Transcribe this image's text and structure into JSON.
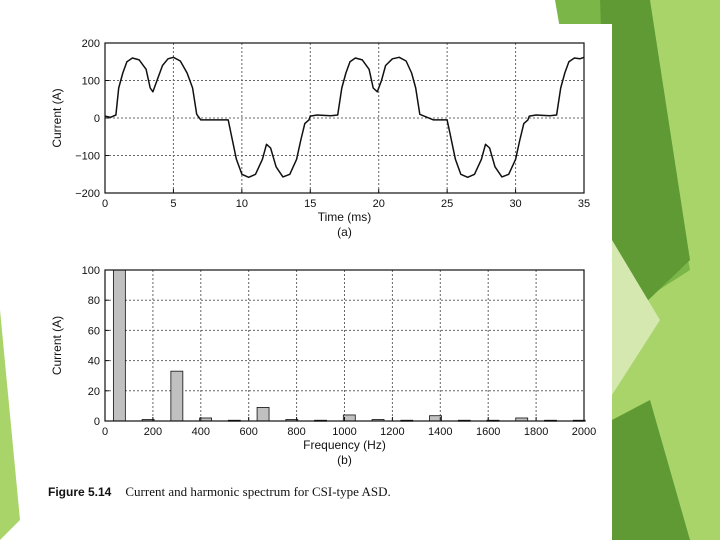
{
  "colors": {
    "background": "#ffffff",
    "decor_green_dark": "#5f9a34",
    "decor_green_mid": "#7ab648",
    "decor_green_light": "#a9d46a",
    "decor_green_pale": "#d4e8b0",
    "bar_fill": "#c0c0c0",
    "line": "#111111"
  },
  "caption": {
    "figure_number": "Figure 5.14",
    "text": "Current and harmonic spectrum for CSI-type ASD."
  },
  "chart_data": [
    {
      "type": "line",
      "panel_label": "(a)",
      "xlabel": "Time (ms)",
      "ylabel": "Current (A)",
      "xlim": [
        0,
        35
      ],
      "ylim": [
        -200,
        200
      ],
      "xticks": [
        0,
        5,
        10,
        15,
        20,
        25,
        30,
        35
      ],
      "yticks": [
        200,
        100,
        0,
        -100,
        -200
      ],
      "ytick_labels": [
        "200",
        "100",
        "0",
        "−100",
        "−200"
      ],
      "grid": true,
      "series": [
        {
          "x": [
            0,
            0.4,
            0.8,
            1.0,
            1.3,
            1.6,
            2.0,
            2.5,
            3.0,
            3.3,
            3.5,
            3.8,
            4.2,
            4.6,
            5.0,
            5.5,
            6.0,
            6.4,
            6.7,
            7.0,
            8.0,
            9.0,
            9.2,
            9.6,
            10.0,
            10.5,
            11.0,
            11.5,
            11.8,
            12.1,
            12.5,
            13.0,
            13.5,
            14.0,
            14.3,
            14.6,
            14.9,
            15.0,
            15.5,
            16.5,
            17.0,
            17.3,
            17.6,
            17.9,
            18.3,
            18.8,
            19.3,
            19.6,
            19.9,
            20.2,
            20.5,
            21.0,
            21.5,
            22.0,
            22.4,
            22.7,
            23.0,
            24.0,
            25.0,
            25.2,
            25.6,
            26.0,
            26.5,
            27.0,
            27.5,
            27.8,
            28.1,
            28.5,
            29.0,
            29.5,
            30.0,
            30.3,
            30.6,
            30.9,
            31.0,
            31.5,
            32.5,
            33.0,
            33.3,
            33.6,
            33.9,
            34.3,
            34.7,
            35.0
          ],
          "y": [
            5,
            2,
            8,
            80,
            120,
            150,
            160,
            155,
            130,
            80,
            70,
            100,
            140,
            158,
            162,
            152,
            120,
            80,
            10,
            -5,
            -5,
            -5,
            -40,
            -110,
            -150,
            -158,
            -150,
            -110,
            -70,
            -80,
            -130,
            -157,
            -150,
            -110,
            -60,
            -15,
            -5,
            5,
            8,
            6,
            8,
            80,
            120,
            150,
            160,
            155,
            130,
            80,
            70,
            100,
            140,
            158,
            162,
            152,
            120,
            80,
            10,
            -5,
            -5,
            -40,
            -110,
            -150,
            -158,
            -150,
            -110,
            -70,
            -80,
            -130,
            -157,
            -150,
            -110,
            -60,
            -15,
            -5,
            5,
            8,
            6,
            8,
            80,
            120,
            150,
            160,
            158,
            162
          ]
        }
      ]
    },
    {
      "type": "bar",
      "panel_label": "(b)",
      "xlabel": "Frequency (Hz)",
      "ylabel": "Current (A)",
      "xlim": [
        0,
        2000
      ],
      "ylim": [
        0,
        100
      ],
      "xticks": [
        0,
        200,
        400,
        600,
        800,
        1000,
        1200,
        1400,
        1600,
        1800,
        2000
      ],
      "yticks": [
        0,
        20,
        40,
        60,
        80,
        100
      ],
      "grid": true,
      "bar_width_hz": 50,
      "series": [
        {
          "x": [
            60,
            180,
            300,
            420,
            540,
            660,
            780,
            900,
            1020,
            1140,
            1260,
            1380,
            1500,
            1620,
            1740,
            1860,
            1980
          ],
          "values": [
            100,
            1,
            33,
            2,
            0.5,
            9,
            1,
            0.5,
            4,
            1,
            0.5,
            3.5,
            0.5,
            0.5,
            2,
            0.5,
            0.5
          ]
        }
      ]
    }
  ]
}
